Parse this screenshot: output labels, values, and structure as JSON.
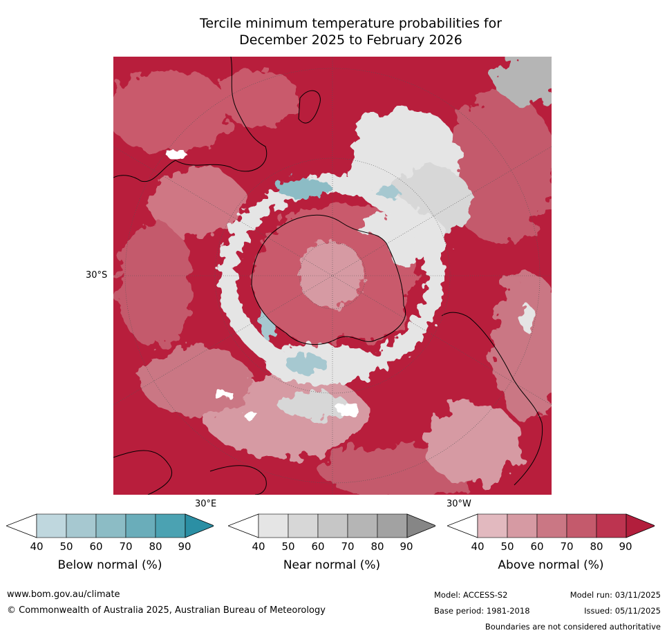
{
  "title": {
    "line1": "Tercile minimum temperature probabilities for",
    "line2": "December 2025 to February 2026"
  },
  "map": {
    "projection": "south polar stereographic",
    "graticule_labels": {
      "lat_30s": "30°S",
      "lon_30e": "30°E",
      "lon_30w": "30°W"
    },
    "colors": {
      "above": [
        "#e2b9bf",
        "#d69aa3",
        "#ca7784",
        "#c45a6c",
        "#bd3450",
        "#b21e3c"
      ],
      "near": [
        "#e5e5e5",
        "#d7d7d7",
        "#c6c6c6",
        "#b5b5b5",
        "#a2a2a2",
        "#868686"
      ],
      "below": [
        "#bfd7de",
        "#a6c8d0",
        "#8cbcc5",
        "#6aadba",
        "#4ba2b2",
        "#2b8fa4"
      ]
    }
  },
  "colorbars": [
    {
      "name": "Below normal (%)",
      "ticks": [
        "40",
        "50",
        "60",
        "70",
        "80",
        "90"
      ],
      "colors": [
        "#bfd7de",
        "#a6c8d0",
        "#8cbcc5",
        "#6aadba",
        "#4ba2b2",
        "#2b8fa4"
      ]
    },
    {
      "name": "Near normal (%)",
      "ticks": [
        "40",
        "50",
        "60",
        "70",
        "80",
        "90"
      ],
      "colors": [
        "#e5e5e5",
        "#d7d7d7",
        "#c6c6c6",
        "#b5b5b5",
        "#a2a2a2",
        "#868686"
      ]
    },
    {
      "name": "Above normal (%)",
      "ticks": [
        "40",
        "50",
        "60",
        "70",
        "80",
        "90"
      ],
      "colors": [
        "#e2b9bf",
        "#d69aa3",
        "#ca7784",
        "#c45a6c",
        "#bd3450",
        "#b21e3c"
      ]
    }
  ],
  "footer": {
    "website": "www.bom.gov.au/climate",
    "copyright": "© Commonwealth of Australia 2025, Australian Bureau of Meteorology",
    "model": "Model: ACCESS-S2",
    "base_period": "Base period: 1981-2018",
    "model_run": "Model run: 03/11/2025",
    "issued": "Issued: 05/11/2025",
    "disclaimer": "Boundaries are not considered authoritative"
  }
}
